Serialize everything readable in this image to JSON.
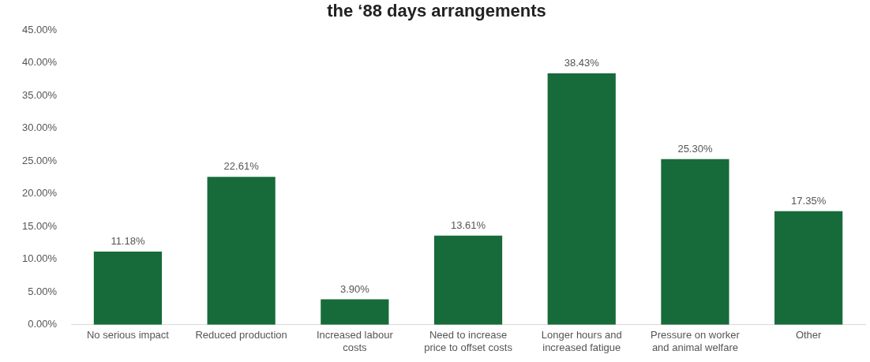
{
  "chart_data": {
    "type": "bar",
    "title": "the ‘88 days arrangements",
    "categories": [
      "No serious impact",
      "Reduced production",
      "Increased labour costs",
      "Need to increase price to offset costs",
      "Longer hours and increased fatigue",
      "Pressure on worker and animal welfare",
      "Other"
    ],
    "values": [
      11.18,
      22.61,
      3.9,
      13.61,
      38.43,
      25.3,
      17.35
    ],
    "value_labels": [
      "11.18%",
      "22.61%",
      "3.90%",
      "13.61%",
      "38.43%",
      "25.30%",
      "17.35%"
    ],
    "color": "#176b3a",
    "ylim": [
      0,
      45
    ],
    "yticks": [
      {
        "value": 0,
        "label": "0.00%"
      },
      {
        "value": 5,
        "label": "5.00%"
      },
      {
        "value": 10,
        "label": "10.00%"
      },
      {
        "value": 15,
        "label": "15.00%"
      },
      {
        "value": 20,
        "label": "20.00%"
      },
      {
        "value": 25,
        "label": "25.00%"
      },
      {
        "value": 30,
        "label": "30.00%"
      },
      {
        "value": 35,
        "label": "35.00%"
      },
      {
        "value": 40,
        "label": "40.00%"
      },
      {
        "value": 45,
        "label": "45.00%"
      }
    ],
    "grid": false,
    "legend": false
  }
}
